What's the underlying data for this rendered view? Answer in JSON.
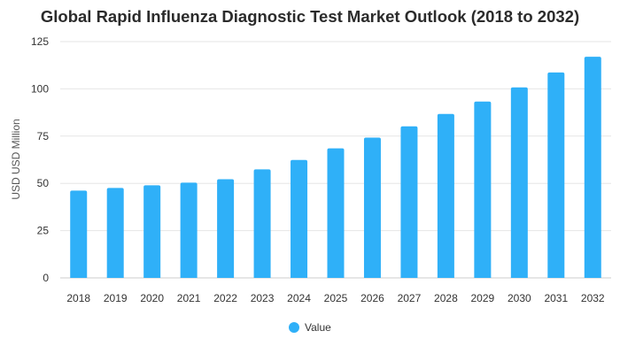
{
  "chart_data": {
    "type": "bar",
    "title": "Global Rapid Influenza Diagnostic Test Market Outlook (2018 to 2032)",
    "xlabel": "",
    "ylabel": "USD USD Million",
    "ylim": [
      0,
      125
    ],
    "yticks": [
      "0",
      "25",
      "50",
      "75",
      "100",
      "125"
    ],
    "categories": [
      "2018",
      "2019",
      "2020",
      "2021",
      "2022",
      "2023",
      "2024",
      "2025",
      "2026",
      "2027",
      "2028",
      "2029",
      "2030",
      "2031",
      "2032"
    ],
    "series": [
      {
        "name": "Value",
        "color": "#2fb0f8",
        "values": [
          46.2,
          47.6,
          49.0,
          50.4,
          52.2,
          57.4,
          62.4,
          68.5,
          74.2,
          80.2,
          86.7,
          93.3,
          100.8,
          108.7,
          117.0
        ]
      }
    ],
    "grid": true,
    "legend": "bottom-center"
  }
}
